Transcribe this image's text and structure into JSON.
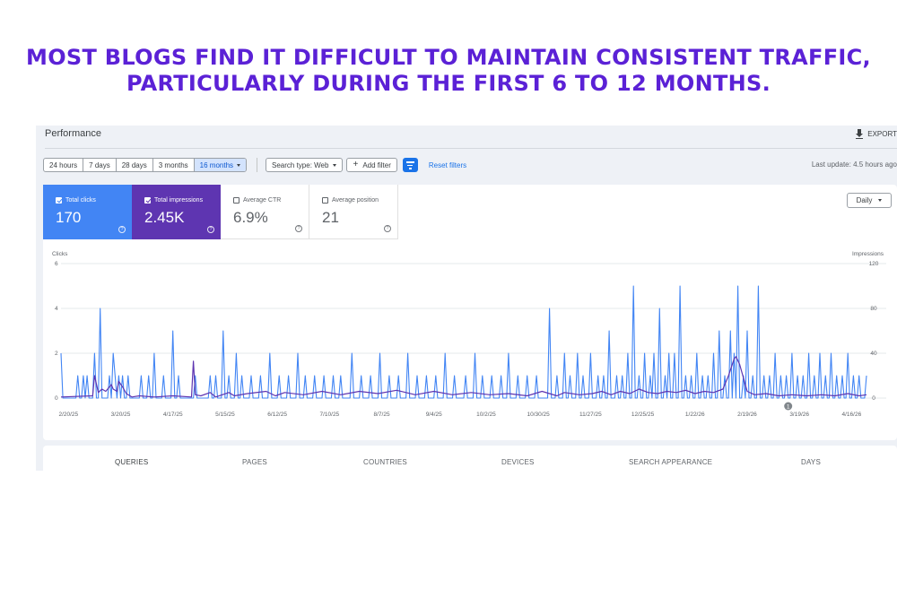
{
  "headline": {
    "line1": "MOST BLOGS FIND IT DIFFICULT TO MAINTAIN CONSISTENT TRAFFIC,",
    "line2": "PARTICULARLY DURING THE FIRST 6 TO 12 MONTHS."
  },
  "header": {
    "title": "Performance",
    "export_label": "EXPORT"
  },
  "toolbar": {
    "date_ranges": [
      "24 hours",
      "7 days",
      "28 days",
      "3 months",
      "16 months"
    ],
    "active_range": "16 months",
    "search_type": "Search type: Web",
    "add_filter": "Add filter",
    "reset_filters": "Reset filters",
    "last_update": "Last update: 4.5 hours ago"
  },
  "metrics": [
    {
      "label": "Total clicks",
      "value": "170",
      "checked": true
    },
    {
      "label": "Total impressions",
      "value": "2.45K",
      "checked": true
    },
    {
      "label": "Average CTR",
      "value": "6.9%",
      "checked": false
    },
    {
      "label": "Average position",
      "value": "21",
      "checked": false
    }
  ],
  "granularity": "Daily",
  "colors": {
    "clicks": "#4285f4",
    "impressions": "#5e35b1",
    "headline": "#5b21d6",
    "accent": "#1a73e8"
  },
  "chart_data": {
    "type": "line",
    "left_axis_label": "Clicks",
    "right_axis_label": "Impressions",
    "left_ticks": [
      "6",
      "4",
      "2",
      "0"
    ],
    "right_ticks": [
      "120",
      "80",
      "40",
      "0"
    ],
    "ylim_left": [
      0,
      6
    ],
    "ylim_right": [
      0,
      120
    ],
    "x_ticks": [
      "2/20/25",
      "3/20/25",
      "4/17/25",
      "5/15/25",
      "6/12/25",
      "7/10/25",
      "8/7/25",
      "9/4/25",
      "10/2/25",
      "10/30/25",
      "11/27/25",
      "12/25/25",
      "1/22/26",
      "2/19/26",
      "3/19/26",
      "4/16/26"
    ],
    "annotation": "1",
    "series": [
      {
        "name": "Clicks",
        "axis": "left",
        "peaks": [
          {
            "x": 0,
            "y": 2
          },
          {
            "x": 9,
            "y": 1
          },
          {
            "x": 12,
            "y": 1
          },
          {
            "x": 14,
            "y": 1
          },
          {
            "x": 18,
            "y": 2
          },
          {
            "x": 21,
            "y": 4
          },
          {
            "x": 26,
            "y": 1
          },
          {
            "x": 28,
            "y": 2
          },
          {
            "x": 29,
            "y": 1
          },
          {
            "x": 31,
            "y": 1
          },
          {
            "x": 33,
            "y": 1
          },
          {
            "x": 36,
            "y": 1
          },
          {
            "x": 43,
            "y": 1
          },
          {
            "x": 47,
            "y": 1
          },
          {
            "x": 50,
            "y": 2
          },
          {
            "x": 55,
            "y": 1
          },
          {
            "x": 60,
            "y": 3
          },
          {
            "x": 63,
            "y": 1
          },
          {
            "x": 72,
            "y": 1
          },
          {
            "x": 80,
            "y": 1
          },
          {
            "x": 83,
            "y": 1
          },
          {
            "x": 87,
            "y": 3
          },
          {
            "x": 90,
            "y": 1
          },
          {
            "x": 94,
            "y": 2
          },
          {
            "x": 97,
            "y": 1
          },
          {
            "x": 102,
            "y": 1
          },
          {
            "x": 107,
            "y": 1
          },
          {
            "x": 112,
            "y": 2
          },
          {
            "x": 117,
            "y": 1
          },
          {
            "x": 122,
            "y": 1
          },
          {
            "x": 127,
            "y": 2
          },
          {
            "x": 131,
            "y": 1
          },
          {
            "x": 136,
            "y": 1
          },
          {
            "x": 141,
            "y": 1
          },
          {
            "x": 146,
            "y": 1
          },
          {
            "x": 150,
            "y": 1
          },
          {
            "x": 156,
            "y": 2
          },
          {
            "x": 161,
            "y": 1
          },
          {
            "x": 166,
            "y": 1
          },
          {
            "x": 171,
            "y": 2
          },
          {
            "x": 176,
            "y": 1
          },
          {
            "x": 181,
            "y": 1
          },
          {
            "x": 186,
            "y": 2
          },
          {
            "x": 191,
            "y": 1
          },
          {
            "x": 196,
            "y": 1
          },
          {
            "x": 201,
            "y": 1
          },
          {
            "x": 206,
            "y": 2
          },
          {
            "x": 211,
            "y": 1
          },
          {
            "x": 217,
            "y": 1
          },
          {
            "x": 222,
            "y": 2
          },
          {
            "x": 226,
            "y": 1
          },
          {
            "x": 231,
            "y": 1
          },
          {
            "x": 236,
            "y": 1
          },
          {
            "x": 240,
            "y": 2
          },
          {
            "x": 245,
            "y": 1
          },
          {
            "x": 250,
            "y": 1
          },
          {
            "x": 255,
            "y": 1
          },
          {
            "x": 262,
            "y": 4
          },
          {
            "x": 266,
            "y": 1
          },
          {
            "x": 270,
            "y": 2
          },
          {
            "x": 273,
            "y": 1
          },
          {
            "x": 277,
            "y": 2
          },
          {
            "x": 280,
            "y": 1
          },
          {
            "x": 284,
            "y": 2
          },
          {
            "x": 288,
            "y": 1
          },
          {
            "x": 291,
            "y": 1
          },
          {
            "x": 294,
            "y": 3
          },
          {
            "x": 298,
            "y": 1
          },
          {
            "x": 301,
            "y": 1
          },
          {
            "x": 304,
            "y": 2
          },
          {
            "x": 307,
            "y": 5
          },
          {
            "x": 310,
            "y": 1
          },
          {
            "x": 313,
            "y": 2
          },
          {
            "x": 316,
            "y": 1
          },
          {
            "x": 318,
            "y": 2
          },
          {
            "x": 321,
            "y": 4
          },
          {
            "x": 324,
            "y": 1
          },
          {
            "x": 326,
            "y": 2
          },
          {
            "x": 329,
            "y": 2
          },
          {
            "x": 332,
            "y": 5
          },
          {
            "x": 335,
            "y": 1
          },
          {
            "x": 338,
            "y": 1
          },
          {
            "x": 341,
            "y": 2
          },
          {
            "x": 344,
            "y": 1
          },
          {
            "x": 347,
            "y": 1
          },
          {
            "x": 350,
            "y": 2
          },
          {
            "x": 353,
            "y": 3
          },
          {
            "x": 356,
            "y": 1
          },
          {
            "x": 359,
            "y": 3
          },
          {
            "x": 361,
            "y": 2
          },
          {
            "x": 363,
            "y": 5
          },
          {
            "x": 366,
            "y": 1
          },
          {
            "x": 368,
            "y": 3
          },
          {
            "x": 371,
            "y": 1
          },
          {
            "x": 374,
            "y": 5
          },
          {
            "x": 377,
            "y": 1
          },
          {
            "x": 380,
            "y": 1
          },
          {
            "x": 383,
            "y": 2
          },
          {
            "x": 386,
            "y": 1
          },
          {
            "x": 389,
            "y": 1
          },
          {
            "x": 392,
            "y": 2
          },
          {
            "x": 395,
            "y": 1
          },
          {
            "x": 398,
            "y": 1
          },
          {
            "x": 401,
            "y": 2
          },
          {
            "x": 404,
            "y": 1
          },
          {
            "x": 407,
            "y": 2
          },
          {
            "x": 410,
            "y": 1
          },
          {
            "x": 413,
            "y": 2
          },
          {
            "x": 416,
            "y": 1
          },
          {
            "x": 419,
            "y": 1
          },
          {
            "x": 422,
            "y": 2
          },
          {
            "x": 425,
            "y": 1
          },
          {
            "x": 428,
            "y": 1
          },
          {
            "x": 432,
            "y": 1
          }
        ]
      },
      {
        "name": "Impressions",
        "axis": "right",
        "points": [
          [
            0,
            1
          ],
          [
            17,
            2
          ],
          [
            18,
            20
          ],
          [
            20,
            5
          ],
          [
            22,
            8
          ],
          [
            24,
            6
          ],
          [
            27,
            12
          ],
          [
            28,
            8
          ],
          [
            30,
            6
          ],
          [
            31,
            15
          ],
          [
            33,
            10
          ],
          [
            35,
            4
          ],
          [
            38,
            1
          ],
          [
            42,
            2
          ],
          [
            50,
            1
          ],
          [
            60,
            2
          ],
          [
            70,
            1
          ],
          [
            71,
            33
          ],
          [
            72,
            3
          ],
          [
            75,
            2
          ],
          [
            80,
            5
          ],
          [
            83,
            1
          ],
          [
            90,
            5
          ],
          [
            93,
            2
          ],
          [
            100,
            4
          ],
          [
            110,
            6
          ],
          [
            115,
            2
          ],
          [
            120,
            5
          ],
          [
            130,
            3
          ],
          [
            140,
            6
          ],
          [
            150,
            3
          ],
          [
            160,
            6
          ],
          [
            170,
            4
          ],
          [
            180,
            7
          ],
          [
            190,
            3
          ],
          [
            200,
            6
          ],
          [
            210,
            3
          ],
          [
            220,
            5
          ],
          [
            230,
            3
          ],
          [
            240,
            4
          ],
          [
            250,
            2
          ],
          [
            258,
            6
          ],
          [
            262,
            4
          ],
          [
            266,
            2
          ],
          [
            270,
            5
          ],
          [
            278,
            3
          ],
          [
            285,
            4
          ],
          [
            290,
            6
          ],
          [
            295,
            3
          ],
          [
            300,
            6
          ],
          [
            305,
            4
          ],
          [
            310,
            8
          ],
          [
            315,
            5
          ],
          [
            320,
            4
          ],
          [
            325,
            6
          ],
          [
            330,
            5
          ],
          [
            335,
            7
          ],
          [
            340,
            4
          ],
          [
            345,
            6
          ],
          [
            350,
            5
          ],
          [
            355,
            8
          ],
          [
            358,
            20
          ],
          [
            361,
            35
          ],
          [
            362,
            37
          ],
          [
            364,
            30
          ],
          [
            366,
            18
          ],
          [
            368,
            6
          ],
          [
            372,
            3
          ],
          [
            378,
            4
          ],
          [
            385,
            2
          ],
          [
            392,
            3
          ],
          [
            400,
            2
          ],
          [
            408,
            3
          ],
          [
            415,
            2
          ],
          [
            422,
            4
          ],
          [
            428,
            2
          ],
          [
            432,
            3
          ]
        ]
      }
    ]
  },
  "tabs": [
    "QUERIES",
    "PAGES",
    "COUNTRIES",
    "DEVICES",
    "SEARCH APPEARANCE",
    "DAYS"
  ]
}
